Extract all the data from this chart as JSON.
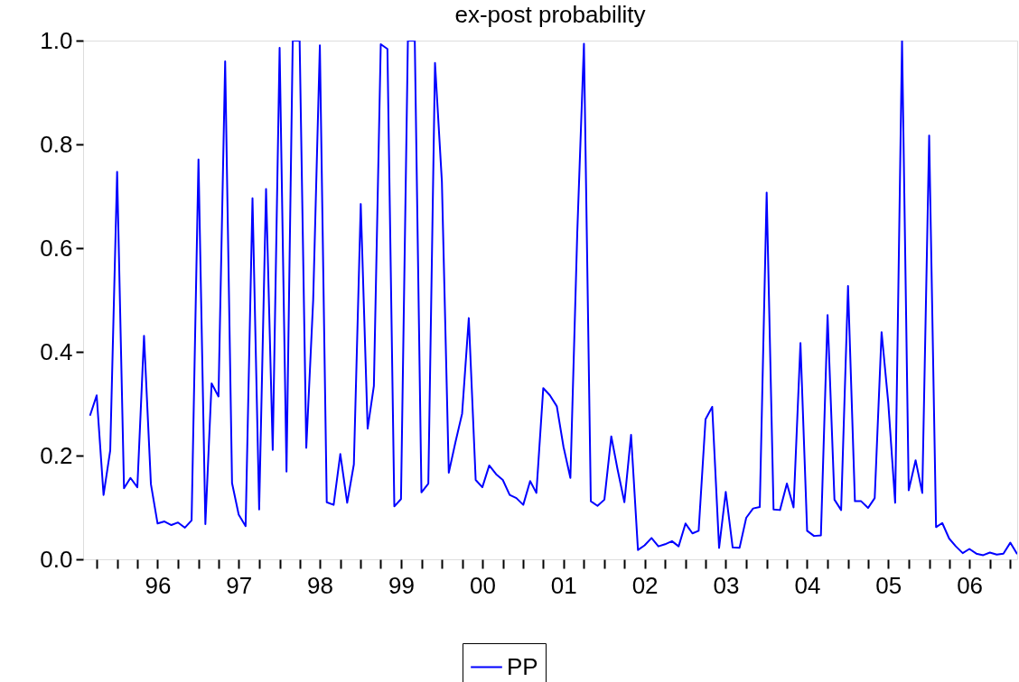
{
  "chart_data": {
    "type": "line",
    "title": "ex-post probability",
    "x": [
      "1995-09",
      "1995-10",
      "1995-11",
      "1995-12",
      "1996-01",
      "1996-02",
      "1996-03",
      "1996-04",
      "1996-05",
      "1996-06",
      "1996-07",
      "1996-08",
      "1996-09",
      "1996-10",
      "1996-11",
      "1996-12",
      "1997-01",
      "1997-02",
      "1997-03",
      "1997-04",
      "1997-05",
      "1997-06",
      "1997-07",
      "1997-08",
      "1997-09",
      "1997-10",
      "1997-11",
      "1997-12",
      "1998-01",
      "1998-02",
      "1998-03",
      "1998-04",
      "1998-05",
      "1998-06",
      "1998-07",
      "1998-08",
      "1998-09",
      "1998-10",
      "1998-11",
      "1998-12",
      "1999-01",
      "1999-02",
      "1999-03",
      "1999-04",
      "1999-05",
      "1999-06",
      "1999-07",
      "1999-08",
      "1999-09",
      "1999-10",
      "1999-11",
      "1999-12",
      "2000-01",
      "2000-02",
      "2000-03",
      "2000-04",
      "2000-05",
      "2000-06",
      "2000-07",
      "2000-08",
      "2000-09",
      "2000-10",
      "2000-11",
      "2000-12",
      "2001-01",
      "2001-02",
      "2001-03",
      "2001-04",
      "2001-05",
      "2001-06",
      "2001-07",
      "2001-08",
      "2001-09",
      "2001-10",
      "2001-11",
      "2001-12",
      "2002-01",
      "2002-02",
      "2002-03",
      "2002-04",
      "2002-05",
      "2002-06",
      "2002-07",
      "2002-08",
      "2002-09",
      "2002-10",
      "2002-11",
      "2002-12",
      "2003-01",
      "2003-02",
      "2003-03",
      "2003-04",
      "2003-05",
      "2003-06",
      "2003-07",
      "2003-08",
      "2003-09",
      "2003-10",
      "2003-11",
      "2003-12",
      "2004-01",
      "2004-02",
      "2004-03",
      "2004-04",
      "2004-05",
      "2004-06",
      "2004-07",
      "2004-08",
      "2004-09",
      "2004-10",
      "2004-11",
      "2004-12",
      "2005-01",
      "2005-02",
      "2005-03",
      "2005-04",
      "2005-05",
      "2005-06",
      "2005-07",
      "2005-08",
      "2005-09",
      "2005-10",
      "2005-11",
      "2005-12",
      "2006-01",
      "2006-02",
      "2006-03",
      "2006-04",
      "2006-05",
      "2006-06",
      "2006-07",
      "2006-08",
      "2006-09",
      "2006-10",
      "2006-11",
      "2006-12",
      "2007-01",
      "2007-02"
    ],
    "series": [
      {
        "name": "PP",
        "color": "#0000ff",
        "values": [
          0.277,
          0.316,
          0.124,
          0.21,
          0.747,
          0.137,
          0.157,
          0.139,
          0.431,
          0.145,
          0.069,
          0.073,
          0.066,
          0.071,
          0.061,
          0.075,
          0.771,
          0.068,
          0.339,
          0.314,
          0.96,
          0.147,
          0.086,
          0.064,
          0.696,
          0.096,
          0.714,
          0.211,
          0.986,
          0.169,
          1.0,
          1.0,
          0.215,
          0.5,
          0.991,
          0.11,
          0.105,
          0.203,
          0.109,
          0.183,
          0.685,
          0.252,
          0.334,
          0.993,
          0.984,
          0.102,
          0.116,
          1.0,
          1.0,
          0.129,
          0.146,
          0.957,
          0.728,
          0.167,
          0.224,
          0.281,
          0.465,
          0.153,
          0.139,
          0.181,
          0.164,
          0.153,
          0.124,
          0.118,
          0.105,
          0.151,
          0.128,
          0.33,
          0.316,
          0.295,
          0.217,
          0.157,
          0.63,
          0.994,
          0.112,
          0.103,
          0.115,
          0.237,
          0.174,
          0.11,
          0.24,
          0.018,
          0.027,
          0.041,
          0.025,
          0.029,
          0.035,
          0.025,
          0.069,
          0.05,
          0.055,
          0.27,
          0.294,
          0.022,
          0.13,
          0.023,
          0.022,
          0.08,
          0.098,
          0.101,
          0.707,
          0.096,
          0.095,
          0.146,
          0.1,
          0.417,
          0.055,
          0.045,
          0.046,
          0.471,
          0.115,
          0.095,
          0.527,
          0.112,
          0.112,
          0.099,
          0.118,
          0.438,
          0.302,
          0.109,
          1.0,
          0.133,
          0.191,
          0.128,
          0.817,
          0.062,
          0.07,
          0.04,
          0.025,
          0.012,
          0.02,
          0.011,
          0.008,
          0.013,
          0.009,
          0.011,
          0.032,
          0.01
        ]
      }
    ],
    "xlim": [
      "1995-08",
      "2007-02"
    ],
    "xticks": [
      {
        "value": "1995-10",
        "label": null
      },
      {
        "value": "1996-01",
        "label": null
      },
      {
        "value": "1996-04",
        "label": null
      },
      {
        "value": "1996-07",
        "label": "96"
      },
      {
        "value": "1996-10",
        "label": null
      },
      {
        "value": "1997-01",
        "label": null
      },
      {
        "value": "1997-04",
        "label": null
      },
      {
        "value": "1997-07",
        "label": "97"
      },
      {
        "value": "1997-10",
        "label": null
      },
      {
        "value": "1998-01",
        "label": null
      },
      {
        "value": "1998-04",
        "label": null
      },
      {
        "value": "1998-07",
        "label": "98"
      },
      {
        "value": "1998-10",
        "label": null
      },
      {
        "value": "1999-01",
        "label": null
      },
      {
        "value": "1999-04",
        "label": null
      },
      {
        "value": "1999-07",
        "label": "99"
      },
      {
        "value": "1999-10",
        "label": null
      },
      {
        "value": "2000-01",
        "label": null
      },
      {
        "value": "2000-04",
        "label": null
      },
      {
        "value": "2000-07",
        "label": "00"
      },
      {
        "value": "2000-10",
        "label": null
      },
      {
        "value": "2001-01",
        "label": null
      },
      {
        "value": "2001-04",
        "label": null
      },
      {
        "value": "2001-07",
        "label": "01"
      },
      {
        "value": "2001-10",
        "label": null
      },
      {
        "value": "2002-01",
        "label": null
      },
      {
        "value": "2002-04",
        "label": null
      },
      {
        "value": "2002-07",
        "label": "02"
      },
      {
        "value": "2002-10",
        "label": null
      },
      {
        "value": "2003-01",
        "label": null
      },
      {
        "value": "2003-04",
        "label": null
      },
      {
        "value": "2003-07",
        "label": "03"
      },
      {
        "value": "2003-10",
        "label": null
      },
      {
        "value": "2004-01",
        "label": null
      },
      {
        "value": "2004-04",
        "label": null
      },
      {
        "value": "2004-07",
        "label": "04"
      },
      {
        "value": "2004-10",
        "label": null
      },
      {
        "value": "2005-01",
        "label": null
      },
      {
        "value": "2005-04",
        "label": null
      },
      {
        "value": "2005-07",
        "label": "05"
      },
      {
        "value": "2005-10",
        "label": null
      },
      {
        "value": "2006-01",
        "label": null
      },
      {
        "value": "2006-04",
        "label": null
      },
      {
        "value": "2006-07",
        "label": "06"
      },
      {
        "value": "2006-10",
        "label": null
      },
      {
        "value": "2007-01",
        "label": null
      }
    ],
    "ylim": [
      0.0,
      1.0
    ],
    "yticks": [
      {
        "value": 0.0,
        "label": "0.0"
      },
      {
        "value": 0.2,
        "label": "0.2"
      },
      {
        "value": 0.4,
        "label": "0.4"
      },
      {
        "value": 0.6,
        "label": "0.6"
      },
      {
        "value": 0.8,
        "label": "0.8"
      },
      {
        "value": 1.0,
        "label": "1.0"
      }
    ],
    "grid": false,
    "legend": "bottom",
    "line_style": "solid",
    "marker": "none"
  }
}
